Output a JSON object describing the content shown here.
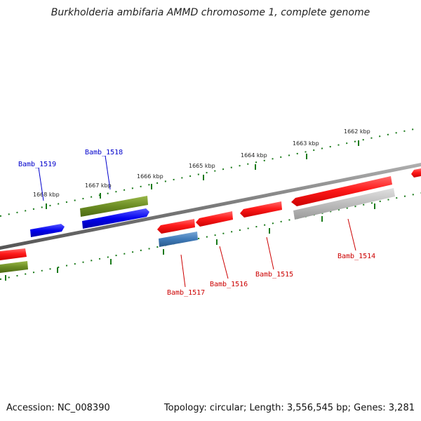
{
  "title": "Burkholderia ambifaria AMMD chromosome 1, complete genome",
  "footer": {
    "accession": "Accession: NC_008390",
    "summary": "Topology: circular; Length: 3,556,545 bp; Genes: 3,281"
  },
  "colors": {
    "backbone": "#777777",
    "tick": "#1a7a1a",
    "forward_label": "#0000cc",
    "reverse_label": "#cc0000"
  },
  "kbp_labels": [
    "1668 kbp",
    "1667 kbp",
    "1666 kbp",
    "1665 kbp",
    "1664 kbp",
    "1663 kbp",
    "1662 kbp"
  ],
  "gene_labels": [
    {
      "text": "Bamb_1519",
      "color": "#0000cc"
    },
    {
      "text": "Bamb_1518",
      "color": "#0000cc"
    },
    {
      "text": "Bamb_1517",
      "color": "#cc0000"
    },
    {
      "text": "Bamb_1516",
      "color": "#cc0000"
    },
    {
      "text": "Bamb_1515",
      "color": "#cc0000"
    },
    {
      "text": "Bamb_1514",
      "color": "#cc0000"
    }
  ]
}
